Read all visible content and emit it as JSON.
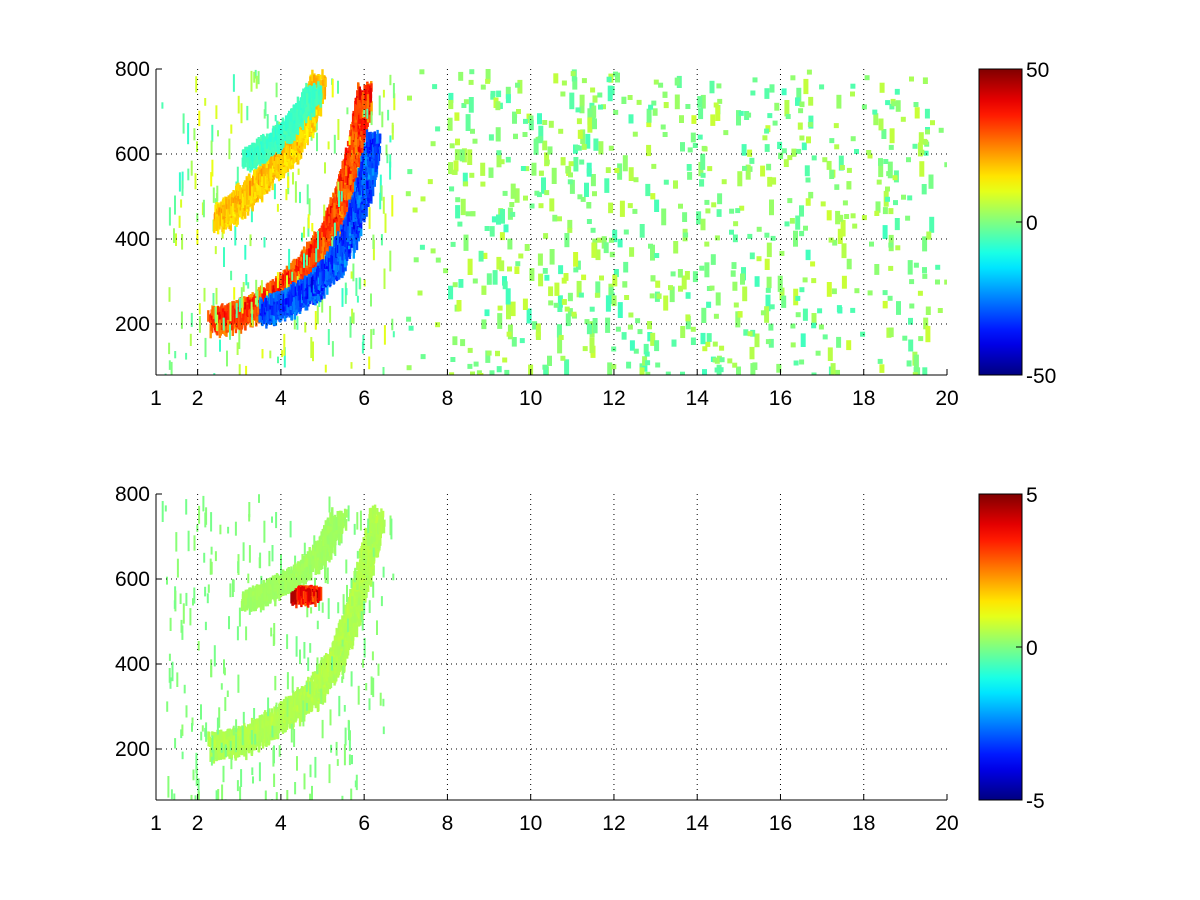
{
  "chart_data": [
    {
      "type": "heatmap",
      "title": "",
      "xlabel": "",
      "ylabel": "",
      "xlim": [
        1,
        20
      ],
      "ylim": [
        80,
        800
      ],
      "x_ticks": [
        1,
        2,
        4,
        6,
        8,
        10,
        12,
        14,
        16,
        18,
        20
      ],
      "y_ticks": [
        200,
        400,
        600,
        800
      ],
      "grid": true,
      "colormap": "jet",
      "colorbar": {
        "min": -50,
        "max": 50,
        "ticks": [
          -50,
          0,
          50
        ]
      },
      "features": [
        {
          "name": "arc-positive",
          "points": [
            [
              2.4,
              220
            ],
            [
              3.0,
              235
            ],
            [
              3.6,
              265
            ],
            [
              4.1,
              300
            ],
            [
              4.6,
              350
            ],
            [
              5.1,
              420
            ],
            [
              5.5,
              520
            ],
            [
              5.8,
              640
            ],
            [
              6.0,
              760
            ]
          ],
          "value": 38,
          "spread": 3
        },
        {
          "name": "arc-negative",
          "points": [
            [
              3.6,
              240
            ],
            [
              4.2,
              265
            ],
            [
              4.8,
              300
            ],
            [
              5.3,
              360
            ],
            [
              5.7,
              440
            ],
            [
              6.0,
              540
            ],
            [
              6.2,
              640
            ]
          ],
          "value": -38,
          "spread": 3
        },
        {
          "name": "arc-upper",
          "points": [
            [
              2.5,
              460
            ],
            [
              3.0,
              500
            ],
            [
              3.6,
              560
            ],
            [
              4.2,
              620
            ],
            [
              4.6,
              690
            ],
            [
              4.9,
              780
            ]
          ],
          "value": 22,
          "spread": 3
        },
        {
          "name": "arc-upper-cool",
          "points": [
            [
              3.2,
              600
            ],
            [
              3.8,
              640
            ],
            [
              4.3,
              690
            ],
            [
              4.8,
              760
            ]
          ],
          "value": -8,
          "spread": 2
        }
      ],
      "noise_columns_x": [
        8.3,
        9.0,
        9.4,
        10.1,
        10.6,
        11.2,
        11.6,
        12.1,
        12.9,
        13.6,
        14.2,
        15.1,
        15.8,
        16.5,
        17.4,
        18.5,
        19.3
      ]
    },
    {
      "type": "heatmap",
      "title": "",
      "xlabel": "",
      "ylabel": "",
      "xlim": [
        1,
        20
      ],
      "ylim": [
        80,
        800
      ],
      "x_ticks": [
        1,
        2,
        4,
        6,
        8,
        10,
        12,
        14,
        16,
        18,
        20
      ],
      "y_ticks": [
        200,
        400,
        600,
        800
      ],
      "grid": true,
      "colormap": "jet",
      "colorbar": {
        "min": -5,
        "max": 5,
        "ticks": [
          -5,
          0,
          5
        ]
      },
      "features": [
        {
          "name": "arc-main",
          "points": [
            [
              2.4,
              220
            ],
            [
              3.0,
              230
            ],
            [
              3.6,
              260
            ],
            [
              4.2,
              300
            ],
            [
              4.8,
              350
            ],
            [
              5.3,
              420
            ],
            [
              5.7,
              520
            ],
            [
              6.0,
              640
            ],
            [
              6.3,
              760
            ]
          ],
          "value": 0.6,
          "spread": 3
        },
        {
          "name": "arc-upper",
          "points": [
            [
              3.2,
              560
            ],
            [
              3.8,
              590
            ],
            [
              4.4,
              620
            ],
            [
              5.0,
              680
            ],
            [
              5.4,
              760
            ]
          ],
          "value": 0.4,
          "spread": 2
        },
        {
          "name": "hot-spot",
          "points": [
            [
              4.4,
              570
            ],
            [
              4.6,
              580
            ],
            [
              4.8,
              575
            ]
          ],
          "value": 4.5,
          "spread": 1
        }
      ],
      "noise_columns_x": []
    }
  ]
}
